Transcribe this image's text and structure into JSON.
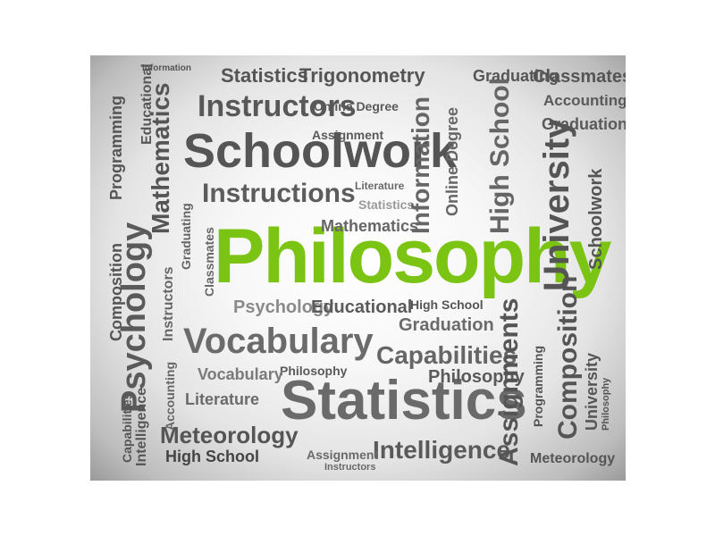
{
  "image": {
    "description_free": true,
    "accent_color": "#7cc414",
    "text_color": "#5a5a5a"
  },
  "words": {
    "philosophy_main": "Philosophy",
    "statistics": "Statistics",
    "schoolwork": "Schoolwork",
    "vocabulary": "Vocabulary",
    "instructors": "Instructors",
    "instructions": "Instructions",
    "trigonometry": "Trigonometry",
    "mathematics": "Mathematics",
    "psychology": "Psychology",
    "university": "University",
    "assignments": "Assignments",
    "composition": "Composition",
    "intelligence": "Intelligence",
    "meteorology": "Meteorology",
    "high_school": "High School",
    "capabilities": "Capabilities",
    "graduation": "Graduation",
    "graduating": "Graduating",
    "classmates": "Classmates",
    "information": "Information",
    "educational": "Educational",
    "accounting": "Accounting",
    "programming": "Programming",
    "literature": "Literature",
    "online_degree": "Online Degree",
    "assignment": "Assignment"
  }
}
